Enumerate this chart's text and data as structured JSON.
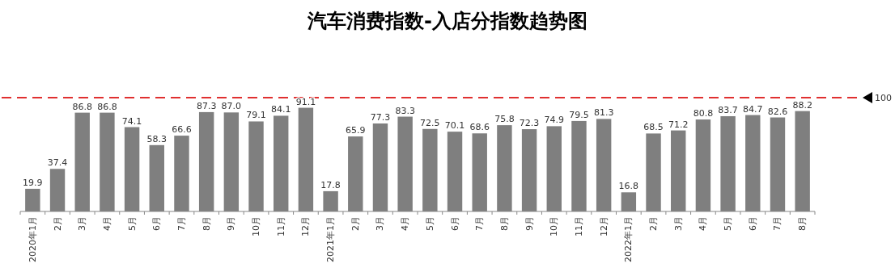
{
  "chart_data": {
    "type": "bar",
    "title": "汽车消费指数-入店分指数趋势图",
    "categories": [
      "2020年1月",
      "2月",
      "3月",
      "4月",
      "5月",
      "6月",
      "7月",
      "8月",
      "9月",
      "10月",
      "11月",
      "12月",
      "2021年1月",
      "2月",
      "3月",
      "4月",
      "5月",
      "6月",
      "7月",
      "8月",
      "9月",
      "10月",
      "11月",
      "12月",
      "2022年1月",
      "2月",
      "3月",
      "4月",
      "5月",
      "6月",
      "7月",
      "8月"
    ],
    "values": [
      19.9,
      37.4,
      86.8,
      86.8,
      74.1,
      58.3,
      66.6,
      87.3,
      87.0,
      79.1,
      84.1,
      91.1,
      17.8,
      65.9,
      77.3,
      83.3,
      72.5,
      70.1,
      68.6,
      75.8,
      72.3,
      74.9,
      79.5,
      81.3,
      16.8,
      68.5,
      71.2,
      80.8,
      83.7,
      84.7,
      82.6,
      88.2
    ],
    "color": "#7f7f7f",
    "value_labels": [
      "19.9",
      "37.4",
      "86.8",
      "86.8",
      "74.1",
      "58.3",
      "66.6",
      "87.3",
      "87.0",
      "79.1",
      "84.1",
      "91.1",
      "17.8",
      "65.9",
      "77.3",
      "83.3",
      "72.5",
      "70.1",
      "68.6",
      "75.8",
      "72.3",
      "74.9",
      "79.5",
      "81.3",
      "16.8",
      "68.5",
      "71.2",
      "80.8",
      "83.7",
      "84.7",
      "82.6",
      "88.2"
    ],
    "ref_lines": [
      {
        "axis": "y",
        "value": 100,
        "label": "100",
        "color": "#e03030",
        "line_style": "dashed"
      }
    ]
  }
}
